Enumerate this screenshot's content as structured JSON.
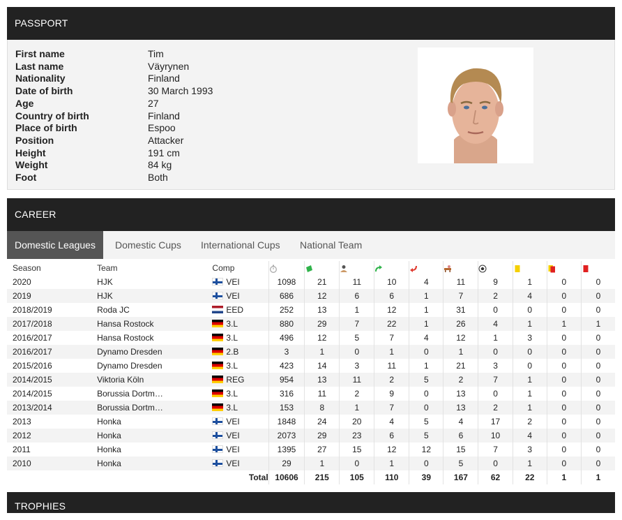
{
  "passport": {
    "title": "PASSPORT",
    "fields": [
      {
        "label": "First name",
        "value": "Tim"
      },
      {
        "label": "Last name",
        "value": "Väyrynen"
      },
      {
        "label": "Nationality",
        "value": "Finland"
      },
      {
        "label": "Date of birth",
        "value": "30 March 1993"
      },
      {
        "label": "Age",
        "value": "27"
      },
      {
        "label": "Country of birth",
        "value": "Finland"
      },
      {
        "label": "Place of birth",
        "value": "Espoo"
      },
      {
        "label": "Position",
        "value": "Attacker"
      },
      {
        "label": "Height",
        "value": "191 cm"
      },
      {
        "label": "Weight",
        "value": "84 kg"
      },
      {
        "label": "Foot",
        "value": "Both"
      }
    ]
  },
  "career": {
    "title": "CAREER",
    "tabs": [
      "Domestic Leagues",
      "Domestic Cups",
      "International Cups",
      "National Team"
    ],
    "active_tab": 0,
    "headers": {
      "season": "Season",
      "team": "Team",
      "comp": "Comp"
    },
    "stat_icons": [
      "minutes-played-icon",
      "appearances-icon",
      "lineups-icon",
      "substitute-in-icon",
      "substitute-out-icon",
      "subs-on-bench-icon",
      "goals-icon",
      "yellow-cards-icon",
      "yellow-red-cards-icon",
      "red-cards-icon"
    ],
    "rows": [
      {
        "season": "2020",
        "team": "HJK",
        "flag": "fi",
        "comp": "VEI",
        "stats": [
          "1098",
          "21",
          "11",
          "10",
          "4",
          "11",
          "9",
          "1",
          "0",
          "0"
        ]
      },
      {
        "season": "2019",
        "team": "HJK",
        "flag": "fi",
        "comp": "VEI",
        "stats": [
          "686",
          "12",
          "6",
          "6",
          "1",
          "7",
          "2",
          "4",
          "0",
          "0"
        ]
      },
      {
        "season": "2018/2019",
        "team": "Roda JC",
        "flag": "nl",
        "comp": "EED",
        "stats": [
          "252",
          "13",
          "1",
          "12",
          "1",
          "31",
          "0",
          "0",
          "0",
          "0"
        ]
      },
      {
        "season": "2017/2018",
        "team": "Hansa Rostock",
        "flag": "de",
        "comp": "3.L",
        "stats": [
          "880",
          "29",
          "7",
          "22",
          "1",
          "26",
          "4",
          "1",
          "1",
          "1"
        ]
      },
      {
        "season": "2016/2017",
        "team": "Hansa Rostock",
        "flag": "de",
        "comp": "3.L",
        "stats": [
          "496",
          "12",
          "5",
          "7",
          "4",
          "12",
          "1",
          "3",
          "0",
          "0"
        ]
      },
      {
        "season": "2016/2017",
        "team": "Dynamo Dresden",
        "flag": "de",
        "comp": "2.B",
        "stats": [
          "3",
          "1",
          "0",
          "1",
          "0",
          "1",
          "0",
          "0",
          "0",
          "0"
        ]
      },
      {
        "season": "2015/2016",
        "team": "Dynamo Dresden",
        "flag": "de",
        "comp": "3.L",
        "stats": [
          "423",
          "14",
          "3",
          "11",
          "1",
          "21",
          "3",
          "0",
          "0",
          "0"
        ]
      },
      {
        "season": "2014/2015",
        "team": "Viktoria Köln",
        "flag": "de",
        "comp": "REG",
        "stats": [
          "954",
          "13",
          "11",
          "2",
          "5",
          "2",
          "7",
          "1",
          "0",
          "0"
        ]
      },
      {
        "season": "2014/2015",
        "team": "Borussia Dortm…",
        "flag": "de",
        "comp": "3.L",
        "stats": [
          "316",
          "11",
          "2",
          "9",
          "0",
          "13",
          "0",
          "1",
          "0",
          "0"
        ]
      },
      {
        "season": "2013/2014",
        "team": "Borussia Dortm…",
        "flag": "de",
        "comp": "3.L",
        "stats": [
          "153",
          "8",
          "1",
          "7",
          "0",
          "13",
          "2",
          "1",
          "0",
          "0"
        ]
      },
      {
        "season": "2013",
        "team": "Honka",
        "flag": "fi",
        "comp": "VEI",
        "stats": [
          "1848",
          "24",
          "20",
          "4",
          "5",
          "4",
          "17",
          "2",
          "0",
          "0"
        ]
      },
      {
        "season": "2012",
        "team": "Honka",
        "flag": "fi",
        "comp": "VEI",
        "stats": [
          "2073",
          "29",
          "23",
          "6",
          "5",
          "6",
          "10",
          "4",
          "0",
          "0"
        ]
      },
      {
        "season": "2011",
        "team": "Honka",
        "flag": "fi",
        "comp": "VEI",
        "stats": [
          "1395",
          "27",
          "15",
          "12",
          "12",
          "15",
          "7",
          "3",
          "0",
          "0"
        ]
      },
      {
        "season": "2010",
        "team": "Honka",
        "flag": "fi",
        "comp": "VEI",
        "stats": [
          "29",
          "1",
          "0",
          "1",
          "0",
          "5",
          "0",
          "1",
          "0",
          "0"
        ]
      }
    ],
    "total_label": "Total",
    "totals": [
      "10606",
      "215",
      "105",
      "110",
      "39",
      "167",
      "62",
      "22",
      "1",
      "1"
    ]
  },
  "trophies": {
    "title": "TROPHIES"
  }
}
